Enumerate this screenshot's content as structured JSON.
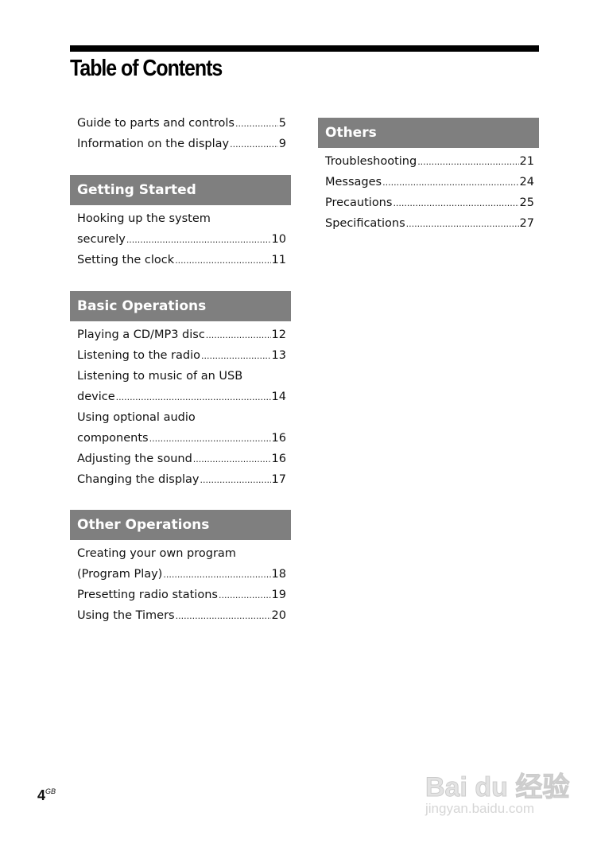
{
  "title": "Table of Contents",
  "intro": [
    {
      "title": "Guide to parts and controls",
      "page": "5"
    },
    {
      "title": "Information on the display",
      "page": "9"
    }
  ],
  "sections": [
    {
      "heading": "Getting Started",
      "entries": [
        {
          "line1": "Hooking up the system",
          "title": "securely",
          "page": "10"
        },
        {
          "title": "Setting the clock",
          "page": "11"
        }
      ]
    },
    {
      "heading": "Basic Operations",
      "entries": [
        {
          "title": "Playing a CD/MP3 disc",
          "page": "12"
        },
        {
          "title": "Listening to the radio",
          "page": "13"
        },
        {
          "line1": "Listening to music of an USB",
          "title": "device",
          "page": "14"
        },
        {
          "line1": "Using optional audio",
          "title": "components",
          "page": "16"
        },
        {
          "title": "Adjusting the sound",
          "page": "16"
        },
        {
          "title": "Changing the display",
          "page": "17"
        }
      ]
    },
    {
      "heading": "Other Operations",
      "entries": [
        {
          "line1": "Creating your own program",
          "title": "(Program Play)",
          "page": "18"
        },
        {
          "title": "Presetting radio stations",
          "page": "19"
        },
        {
          "title": "Using the Timers",
          "page": "20"
        }
      ]
    },
    {
      "heading": "Others",
      "entries": [
        {
          "title": "Troubleshooting",
          "page": "21"
        },
        {
          "title": "Messages",
          "page": "24"
        },
        {
          "title": "Precautions",
          "page": "25"
        },
        {
          "title": "Specifications",
          "page": "27"
        }
      ]
    }
  ],
  "footer": {
    "page_number": "4",
    "region": "GB"
  },
  "watermark": {
    "brand": "Bai du 经验",
    "url": "jingyan.baidu.com"
  }
}
